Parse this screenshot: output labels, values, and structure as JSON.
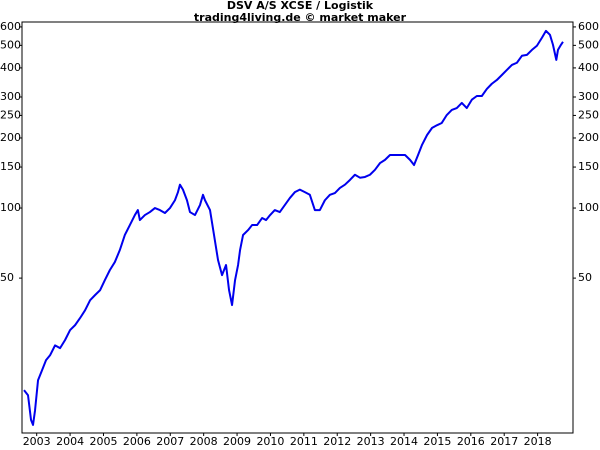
{
  "chart_data": {
    "type": "line",
    "title": "DSV A/S XCSE / Logistik",
    "subtitle": "trading4living.de © market maker",
    "log_scale": true,
    "grid": false,
    "xlim": [
      2003.06,
      2019.56
    ],
    "ylim": [
      10.8,
      630
    ],
    "yticks": [
      50,
      100,
      150,
      200,
      250,
      300,
      400,
      500,
      600
    ],
    "xticks": [
      {
        "value": 2003.5,
        "label": "2003"
      },
      {
        "value": 2004.5,
        "label": "2004"
      },
      {
        "value": 2005.5,
        "label": "2005"
      },
      {
        "value": 2006.5,
        "label": "2006"
      },
      {
        "value": 2007.5,
        "label": "2007"
      },
      {
        "value": 2008.5,
        "label": "2008"
      },
      {
        "value": 2009.5,
        "label": "2009"
      },
      {
        "value": 2010.5,
        "label": "2010"
      },
      {
        "value": 2011.5,
        "label": "2011"
      },
      {
        "value": 2012.5,
        "label": "2012"
      },
      {
        "value": 2013.5,
        "label": "2013"
      },
      {
        "value": 2014.5,
        "label": "2014"
      },
      {
        "value": 2015.5,
        "label": "2015"
      },
      {
        "value": 2016.5,
        "label": "2016"
      },
      {
        "value": 2017.5,
        "label": "2017"
      },
      {
        "value": 2018.5,
        "label": "2018"
      }
    ],
    "x": [
      2003.12,
      2003.24,
      2003.33,
      2003.39,
      2003.45,
      2003.54,
      2003.66,
      2003.78,
      2003.9,
      2004.05,
      2004.2,
      2004.35,
      2004.5,
      2004.65,
      2004.8,
      2004.95,
      2005.1,
      2005.25,
      2005.4,
      2005.54,
      2005.69,
      2005.84,
      2005.99,
      2006.14,
      2006.29,
      2006.44,
      2006.53,
      2006.59,
      2006.74,
      2006.89,
      2007.04,
      2007.19,
      2007.34,
      2007.49,
      2007.64,
      2007.73,
      2007.79,
      2007.88,
      2008.0,
      2008.09,
      2008.24,
      2008.39,
      2008.48,
      2008.54,
      2008.69,
      2008.81,
      2008.93,
      2009.05,
      2009.17,
      2009.26,
      2009.35,
      2009.44,
      2009.53,
      2009.59,
      2009.68,
      2009.83,
      2009.95,
      2010.1,
      2010.25,
      2010.37,
      2010.49,
      2010.63,
      2010.78,
      2010.93,
      2011.08,
      2011.23,
      2011.38,
      2011.53,
      2011.68,
      2011.83,
      2011.98,
      2012.13,
      2012.28,
      2012.43,
      2012.58,
      2012.73,
      2012.88,
      2013.03,
      2013.18,
      2013.33,
      2013.48,
      2013.63,
      2013.78,
      2013.93,
      2014.08,
      2014.23,
      2014.38,
      2014.53,
      2014.68,
      2014.8,
      2014.92,
      2015.04,
      2015.19,
      2015.34,
      2015.49,
      2015.63,
      2015.78,
      2015.93,
      2016.08,
      2016.23,
      2016.38,
      2016.53,
      2016.68,
      2016.83,
      2016.98,
      2017.13,
      2017.28,
      2017.43,
      2017.58,
      2017.73,
      2017.88,
      2018.03,
      2018.18,
      2018.33,
      2018.48,
      2018.63,
      2018.75,
      2018.87,
      2018.96,
      2019.06,
      2019.11,
      2019.2,
      2019.26
    ],
    "series": [
      {
        "color": "#0000ee",
        "values": [
          16.5,
          15.7,
          12.3,
          11.7,
          13.5,
          18.2,
          20.1,
          22.2,
          23.3,
          25.7,
          25,
          27.1,
          29.9,
          31.4,
          33.7,
          36.4,
          40.2,
          42.3,
          44.4,
          49,
          54.1,
          58.6,
          66,
          76.6,
          84.5,
          93.3,
          98,
          88.8,
          93.3,
          96.1,
          100,
          98,
          95.2,
          100,
          108,
          117,
          126,
          120,
          108,
          96.1,
          93.3,
          103,
          114,
          108,
          98,
          76.6,
          59.8,
          51.5,
          56.9,
          44.4,
          38.3,
          49,
          56.9,
          66,
          76.6,
          80.4,
          84.5,
          84.5,
          90.6,
          88.8,
          93.3,
          98,
          96.1,
          103,
          110.4,
          117,
          120,
          117,
          114,
          98,
          98,
          108,
          114,
          116,
          122,
          126,
          132,
          139,
          135,
          136,
          139,
          146,
          156,
          161,
          169,
          169,
          169,
          169,
          161,
          153,
          169,
          187,
          206,
          221,
          227,
          232,
          251,
          264,
          269,
          283,
          269,
          292,
          303,
          303,
          325,
          342,
          355,
          373,
          392,
          412,
          421,
          451,
          455,
          478,
          498,
          539,
          577,
          555,
          503,
          433,
          478,
          503,
          518
        ]
      }
    ]
  }
}
